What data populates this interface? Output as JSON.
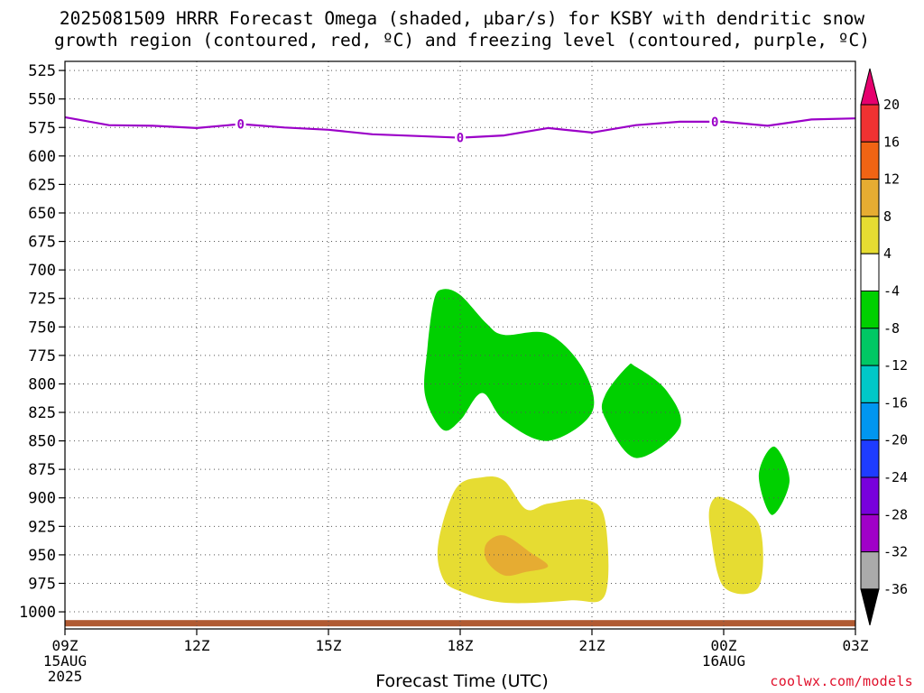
{
  "title_line1": "2025081509 HRRR Forecast Omega (shaded, µbar/s) for KSBY with dendritic snow",
  "title_line2": "growth region (contoured, red, ºC) and freezing level (contoured, purple, ºC)",
  "credit": "coolwx.com/models",
  "chart_data": {
    "type": "time-height cross section (filled contour)",
    "title": "2025081509 HRRR Forecast Omega (shaded, µbar/s) for KSBY with dendritic snow growth region (contoured, red, ºC) and freezing level (contoured, purple, ºC)",
    "xlabel": "Forecast Time (UTC)",
    "ylabel": "",
    "x_range_hours": [
      0,
      18
    ],
    "y_range_hpa": [
      1015,
      517
    ],
    "x_ticks": [
      {
        "hour": 0,
        "label": "09Z",
        "sub1": "15AUG",
        "sub2": "2025"
      },
      {
        "hour": 3,
        "label": "12Z"
      },
      {
        "hour": 6,
        "label": "15Z"
      },
      {
        "hour": 9,
        "label": "18Z"
      },
      {
        "hour": 12,
        "label": "21Z"
      },
      {
        "hour": 15,
        "label": "00Z",
        "sub1": "16AUG"
      },
      {
        "hour": 18,
        "label": "03Z"
      }
    ],
    "y_ticks": [
      525,
      550,
      575,
      600,
      625,
      650,
      675,
      700,
      725,
      750,
      775,
      800,
      825,
      850,
      875,
      900,
      925,
      950,
      975,
      1000
    ],
    "grid": true,
    "freezing_level": {
      "label": "0",
      "color": "#9b00c8",
      "points": [
        [
          0,
          566
        ],
        [
          1,
          573
        ],
        [
          2,
          573.5
        ],
        [
          3,
          575.5
        ],
        [
          4,
          572
        ],
        [
          5,
          575
        ],
        [
          6,
          577
        ],
        [
          7,
          581
        ],
        [
          8,
          582.5
        ],
        [
          9,
          584
        ],
        [
          10,
          582
        ],
        [
          11,
          575.5
        ],
        [
          12,
          579.5
        ],
        [
          13,
          573
        ],
        [
          14,
          570
        ],
        [
          15,
          570
        ],
        [
          16,
          573.5
        ],
        [
          17,
          568
        ],
        [
          18,
          567
        ]
      ],
      "label_hours": [
        4,
        9,
        14.8
      ]
    },
    "omega_regions": [
      {
        "level": "-8 to -4",
        "color": "#00d000",
        "points": [
          [
            8.4,
            727
          ],
          [
            8.6,
            717
          ],
          [
            9,
            722
          ],
          [
            9.6,
            747
          ],
          [
            10,
            757
          ],
          [
            11,
            756
          ],
          [
            11.8,
            787
          ],
          [
            12,
            825
          ],
          [
            11,
            850
          ],
          [
            10,
            832
          ],
          [
            9.5,
            808
          ],
          [
            9,
            832
          ],
          [
            8.6,
            840
          ],
          [
            8.2,
            810
          ],
          [
            8.25,
            770
          ]
        ]
      },
      {
        "level": "-8 to -4",
        "color": "#00d000",
        "points": [
          [
            12.3,
            810
          ],
          [
            12.8,
            785
          ],
          [
            13,
            785
          ],
          [
            13.7,
            806
          ],
          [
            14,
            838
          ],
          [
            13,
            865
          ],
          [
            12.3,
            830
          ]
        ]
      },
      {
        "level": "-8 to -4",
        "color": "#00d000",
        "points": [
          [
            16.15,
            855
          ],
          [
            16.5,
            885
          ],
          [
            16.1,
            915
          ],
          [
            15.8,
            880
          ]
        ]
      },
      {
        "level": "4 to 8",
        "color": "#e6dc32",
        "points": [
          [
            8.9,
            892
          ],
          [
            9.5,
            882
          ],
          [
            10,
            885
          ],
          [
            10.5,
            910
          ],
          [
            11,
            905
          ],
          [
            11.9,
            902
          ],
          [
            12.3,
            920
          ],
          [
            12.3,
            985
          ],
          [
            11.5,
            990
          ],
          [
            10,
            992
          ],
          [
            9,
            982
          ],
          [
            8.6,
            970
          ],
          [
            8.5,
            940
          ]
        ]
      },
      {
        "level": "4 to 8",
        "color": "#e6dc32",
        "points": [
          [
            14.7,
            906
          ],
          [
            15,
            900
          ],
          [
            15.8,
            923
          ],
          [
            15.8,
            978
          ],
          [
            15,
            978
          ],
          [
            14.7,
            930
          ]
        ]
      },
      {
        "level": "8 to 12",
        "color": "#e6ac32",
        "points": [
          [
            9.6,
            940
          ],
          [
            10,
            933
          ],
          [
            10.6,
            948
          ],
          [
            11,
            960
          ],
          [
            10.5,
            965
          ],
          [
            10,
            968
          ],
          [
            9.6,
            955
          ]
        ]
      }
    ],
    "terrain_bar": {
      "color": "#b05a32",
      "level_hpa": 1010
    },
    "colorbar": {
      "labels": [
        "20",
        "16",
        "12",
        "8",
        "4",
        "-4",
        "-8",
        "-12",
        "-16",
        "-20",
        "-24",
        "-28",
        "-32",
        "-36"
      ],
      "colors": [
        "#e6006e",
        "#f03232",
        "#f06414",
        "#e6ac32",
        "#e6dc32",
        "#ffffff",
        "#00d000",
        "#00c864",
        "#00c8c8",
        "#0096f0",
        "#1e3cff",
        "#7800dc",
        "#a000c8",
        "#aaaaaa",
        "#000000"
      ]
    }
  }
}
